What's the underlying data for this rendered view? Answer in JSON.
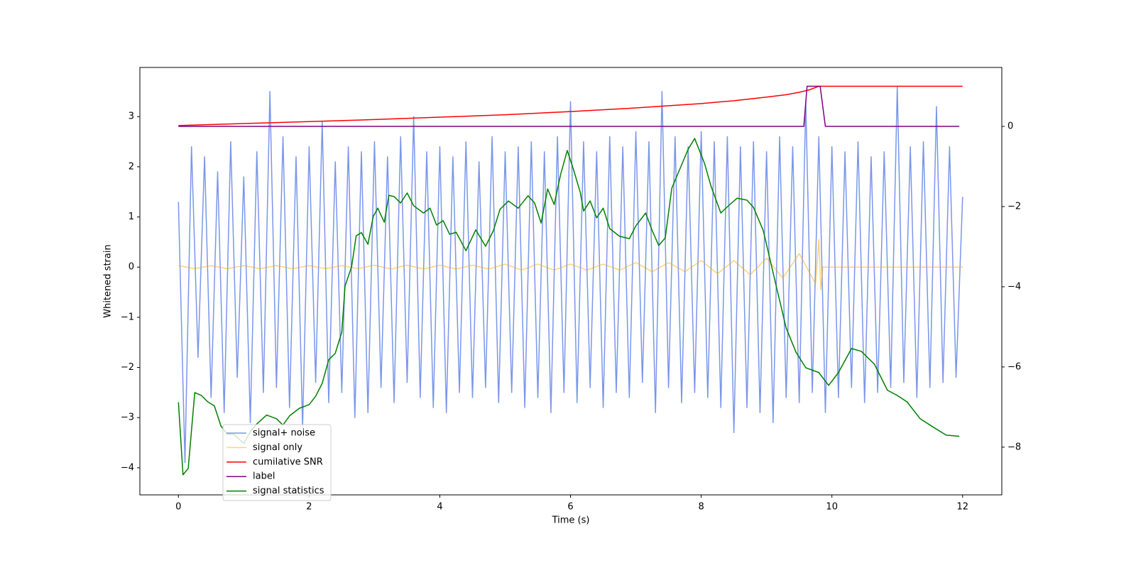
{
  "chart_data": {
    "type": "line",
    "xlabel": "Time (s)",
    "ylabel": "Whitened strain",
    "xlim": [
      -0.59,
      12.6
    ],
    "xticks": [
      0,
      2,
      4,
      6,
      8,
      10,
      12
    ],
    "ylim": [
      -4.54,
      3.98
    ],
    "yticks": [
      {
        "value": -4,
        "label": "−4"
      },
      {
        "value": -3,
        "label": "−3"
      },
      {
        "value": -2,
        "label": "−2"
      },
      {
        "value": -1,
        "label": "−1"
      },
      0,
      1,
      2,
      3
    ],
    "y2lim": [
      -9.19,
      1.47
    ],
    "y2ticks": [
      {
        "value": -8,
        "label": "−8"
      },
      {
        "value": -6,
        "label": "−6"
      },
      {
        "value": -4,
        "label": "−4"
      },
      {
        "value": -2,
        "label": "−2"
      },
      0
    ],
    "legend_loc": "lower left",
    "series": [
      {
        "name": "signal+ noise",
        "color": "#4169e1",
        "alpha": 0.7,
        "x": [
          0,
          0.1,
          0.2,
          0.3,
          0.4,
          0.5,
          0.6,
          0.7,
          0.8,
          0.9,
          1,
          1.1,
          1.2,
          1.3,
          1.4,
          1.5,
          1.6,
          1.7,
          1.8,
          1.9,
          2,
          2.1,
          2.2,
          2.3,
          2.4,
          2.5,
          2.6,
          2.7,
          2.8,
          2.9,
          3,
          3.1,
          3.2,
          3.3,
          3.4,
          3.5,
          3.6,
          3.7,
          3.8,
          3.9,
          4,
          4.1,
          4.2,
          4.3,
          4.4,
          4.5,
          4.6,
          4.7,
          4.8,
          4.9,
          5,
          5.1,
          5.2,
          5.3,
          5.4,
          5.5,
          5.6,
          5.7,
          5.8,
          5.9,
          6,
          6.1,
          6.2,
          6.3,
          6.4,
          6.5,
          6.6,
          6.7,
          6.8,
          6.9,
          7,
          7.1,
          7.2,
          7.3,
          7.4,
          7.5,
          7.6,
          7.7,
          7.8,
          7.9,
          8,
          8.1,
          8.2,
          8.3,
          8.4,
          8.5,
          8.6,
          8.7,
          8.8,
          8.9,
          9,
          9.1,
          9.2,
          9.3,
          9.4,
          9.5,
          9.6,
          9.7,
          9.8,
          9.9,
          10,
          10.1,
          10.2,
          10.3,
          10.4,
          10.5,
          10.6,
          10.7,
          10.8,
          10.9,
          11,
          11.1,
          11.2,
          11.3,
          11.4,
          11.5,
          11.6,
          11.7,
          11.8,
          11.9,
          12
        ],
        "values": [
          1.3,
          -3.9,
          2.4,
          -1.8,
          2.2,
          -2.6,
          1.9,
          -2.9,
          2.5,
          -2.2,
          1.8,
          -3.1,
          2.3,
          -2.5,
          3.5,
          -2.4,
          2.6,
          -2.8,
          2.2,
          -3.2,
          2.4,
          -2.3,
          2.9,
          -2.7,
          2.1,
          -2.5,
          2.4,
          -3.0,
          2.3,
          -2.9,
          2.5,
          -2.4,
          2.2,
          -2.7,
          2.6,
          -2.3,
          3.0,
          -2.6,
          2.3,
          -2.8,
          2.4,
          -2.9,
          2.2,
          -2.5,
          2.5,
          -2.6,
          2.1,
          -2.4,
          2.6,
          -2.7,
          2.3,
          -2.5,
          2.4,
          -2.8,
          2.5,
          -2.6,
          2.3,
          -2.9,
          2.6,
          -2.5,
          3.3,
          -2.7,
          2.5,
          -2.4,
          2.3,
          -2.8,
          2.6,
          -2.5,
          2.4,
          -2.6,
          2.7,
          -2.3,
          2.5,
          -2.9,
          3.5,
          -2.4,
          2.6,
          -2.7,
          2.4,
          -2.5,
          2.7,
          -2.6,
          2.5,
          -2.8,
          2.6,
          -3.3,
          2.4,
          -2.8,
          2.5,
          -2.9,
          2.3,
          -3.1,
          2.6,
          -2.6,
          2.4,
          -2.7,
          3.3,
          -2.5,
          2.6,
          -2.9,
          2.4,
          -2.6,
          2.3,
          -2.4,
          2.5,
          -2.7,
          2.2,
          -2.5,
          2.3,
          -2.4,
          3.6,
          -2.3,
          2.4,
          -2.6,
          2.5,
          -2.4,
          3.2,
          -2.3,
          2.4,
          -2.2,
          1.4
        ]
      },
      {
        "name": "signal only",
        "color": "#ffa500",
        "alpha": 0.5,
        "x": [
          0,
          0.25,
          0.5,
          0.75,
          1,
          1.25,
          1.5,
          1.75,
          2,
          2.25,
          2.5,
          2.75,
          3,
          3.25,
          3.5,
          3.75,
          4,
          4.25,
          4.5,
          4.75,
          5,
          5.25,
          5.5,
          5.75,
          6,
          6.25,
          6.5,
          6.75,
          7,
          7.25,
          7.5,
          7.75,
          8,
          8.25,
          8.5,
          8.75,
          9,
          9.25,
          9.5,
          9.75,
          9.8,
          9.83,
          9.86,
          12
        ],
        "values": [
          0.03,
          -0.03,
          0.03,
          -0.03,
          0.03,
          -0.03,
          0.03,
          -0.03,
          0.03,
          -0.03,
          0.03,
          -0.03,
          0.04,
          -0.04,
          0.04,
          -0.04,
          0.04,
          -0.04,
          0.04,
          -0.04,
          0.06,
          -0.06,
          0.06,
          -0.06,
          0.06,
          -0.06,
          0.06,
          -0.06,
          0.09,
          -0.09,
          0.09,
          -0.09,
          0.13,
          -0.13,
          0.13,
          -0.15,
          0.18,
          -0.22,
          0.27,
          -0.33,
          0.55,
          -0.45,
          0,
          0
        ]
      },
      {
        "name": "cumilative SNR",
        "color": "#ff0000",
        "axis": "y2",
        "x": [
          0,
          1,
          2,
          3,
          4,
          5,
          6,
          7,
          8,
          8.5,
          9,
          9.3,
          9.5,
          9.65,
          9.8,
          12
        ],
        "values": [
          0.02,
          0.07,
          0.12,
          0.17,
          0.23,
          0.29,
          0.37,
          0.46,
          0.57,
          0.64,
          0.73,
          0.79,
          0.85,
          0.91,
          1.0,
          1.0
        ]
      },
      {
        "name": "label",
        "color": "#800080",
        "axis": "y2",
        "x": [
          0,
          9.57,
          9.62,
          9.82,
          9.9,
          11.95
        ],
        "values": [
          0,
          0,
          1,
          1,
          0,
          0
        ]
      },
      {
        "name": "signal statistics",
        "color": "#008000",
        "axis": "y2",
        "x": [
          0,
          0.07,
          0.15,
          0.25,
          0.35,
          0.45,
          0.55,
          0.65,
          0.75,
          0.85,
          1.0,
          1.1,
          1.2,
          1.35,
          1.5,
          1.6,
          1.7,
          1.85,
          2.0,
          2.1,
          2.2,
          2.3,
          2.4,
          2.5,
          2.55,
          2.65,
          2.72,
          2.8,
          2.9,
          2.98,
          3.05,
          3.15,
          3.22,
          3.3,
          3.4,
          3.5,
          3.6,
          3.75,
          3.85,
          3.95,
          4.05,
          4.15,
          4.25,
          4.4,
          4.55,
          4.7,
          4.82,
          4.92,
          5.05,
          5.2,
          5.35,
          5.45,
          5.55,
          5.65,
          5.75,
          5.85,
          5.95,
          6.05,
          6.15,
          6.2,
          6.3,
          6.4,
          6.5,
          6.6,
          6.75,
          6.9,
          7.0,
          7.15,
          7.25,
          7.35,
          7.45,
          7.55,
          7.7,
          7.8,
          7.9,
          8.05,
          8.15,
          8.3,
          8.45,
          8.55,
          8.7,
          8.8,
          8.95,
          9.1,
          9.3,
          9.45,
          9.6,
          9.8,
          9.95,
          10.1,
          10.3,
          10.45,
          10.65,
          10.85,
          11.0,
          11.15,
          11.35,
          11.55,
          11.75,
          11.95
        ],
        "values": [
          -6.88,
          -8.69,
          -8.53,
          -6.64,
          -6.71,
          -6.87,
          -6.97,
          -7.47,
          -7.68,
          -7.68,
          -7.91,
          -7.61,
          -7.42,
          -7.2,
          -7.29,
          -7.45,
          -7.22,
          -7.03,
          -6.94,
          -6.73,
          -6.41,
          -5.82,
          -5.66,
          -5.13,
          -3.98,
          -3.5,
          -2.73,
          -2.65,
          -2.94,
          -2.25,
          -2.04,
          -2.39,
          -1.72,
          -1.75,
          -1.91,
          -1.66,
          -1.98,
          -2.16,
          -2.04,
          -2.46,
          -2.35,
          -2.69,
          -2.64,
          -3.1,
          -2.58,
          -2.99,
          -2.6,
          -2.07,
          -1.86,
          -2.04,
          -1.73,
          -1.91,
          -2.41,
          -1.56,
          -1.95,
          -1.19,
          -0.6,
          -1.1,
          -1.65,
          -2.11,
          -1.86,
          -2.28,
          -2.04,
          -2.55,
          -2.74,
          -2.8,
          -2.48,
          -2.16,
          -2.6,
          -2.97,
          -2.78,
          -1.54,
          -0.96,
          -0.57,
          -0.3,
          -0.92,
          -1.49,
          -2.16,
          -1.93,
          -1.79,
          -1.84,
          -2.02,
          -2.6,
          -3.65,
          -5.03,
          -5.63,
          -6.02,
          -6.14,
          -6.46,
          -6.14,
          -5.54,
          -5.61,
          -5.93,
          -6.58,
          -6.71,
          -6.87,
          -7.29,
          -7.5,
          -7.7,
          -7.73
        ]
      }
    ]
  }
}
